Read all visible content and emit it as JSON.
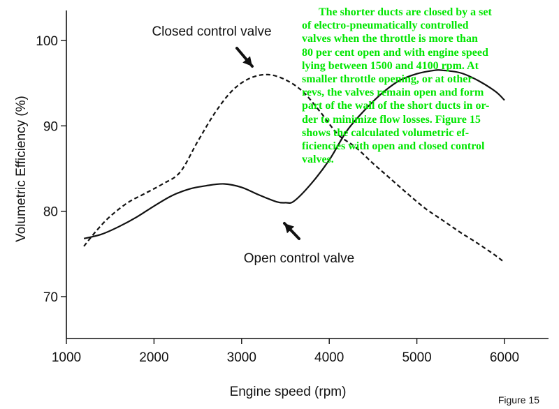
{
  "chart_data": {
    "type": "line",
    "xlabel": "Engine speed (rpm)",
    "ylabel": "Volumetric Efficiency (%)",
    "xlim": [
      1000,
      6500
    ],
    "ylim": [
      65,
      103
    ],
    "x_ticks": [
      1000,
      2000,
      3000,
      4000,
      5000,
      6000
    ],
    "y_ticks": [
      70,
      80,
      90,
      100
    ],
    "grid": false,
    "series": [
      {
        "name": "Closed control valve",
        "style": "dashed",
        "x": [
          1200,
          1350,
          1500,
          1700,
          1900,
          2100,
          2300,
          2500,
          2700,
          2900,
          3100,
          3300,
          3500,
          3700,
          3900,
          4100,
          4300,
          4500,
          4700,
          4900,
          5100,
          5300,
          5500,
          5700,
          5900,
          6000
        ],
        "y": [
          75.9,
          77.8,
          79.4,
          81.0,
          82.1,
          83.2,
          84.6,
          88.2,
          91.6,
          94.2,
          95.6,
          96.0,
          95.4,
          94.0,
          91.6,
          89.0,
          87.5,
          85.6,
          83.8,
          82.0,
          80.3,
          78.9,
          77.5,
          76.2,
          74.8,
          74.0
        ]
      },
      {
        "name": "Open control valve",
        "style": "solid",
        "x": [
          1200,
          1400,
          1600,
          1800,
          2000,
          2200,
          2400,
          2600,
          2800,
          3000,
          3200,
          3400,
          3500,
          3600,
          3800,
          4000,
          4200,
          4400,
          4600,
          4800,
          5000,
          5200,
          5300,
          5500,
          5700,
          5900,
          6000
        ],
        "y": [
          76.8,
          77.3,
          78.2,
          79.3,
          80.6,
          81.8,
          82.6,
          83.0,
          83.2,
          82.8,
          81.9,
          81.1,
          81.0,
          81.2,
          83.3,
          86.0,
          89.4,
          91.8,
          93.8,
          95.3,
          96.1,
          96.5,
          96.5,
          96.2,
          95.3,
          94.0,
          93.0
        ]
      }
    ],
    "annotations": [
      {
        "text": "Closed control valve"
      },
      {
        "text": "Open control valve"
      },
      {
        "text": "Figure 15"
      }
    ]
  },
  "overlay_text": {
    "color": "#00e600",
    "lines": [
      "The shorter ducts are closed by a set",
      "of electro-pneumatically controlled",
      "valves when the throttle is more than",
      "80 per cent open and with engine speed",
      "lying between 1500 and 4100 rpm. At",
      "smaller throttle opening, or at other",
      "revs, the valves remain open and form",
      "part of the wall of the short ducts in or-",
      "der to minimize flow losses. Figure 15",
      "shows the calculated volumetric ef-",
      "ficiencies with open and closed control",
      "valves."
    ]
  }
}
